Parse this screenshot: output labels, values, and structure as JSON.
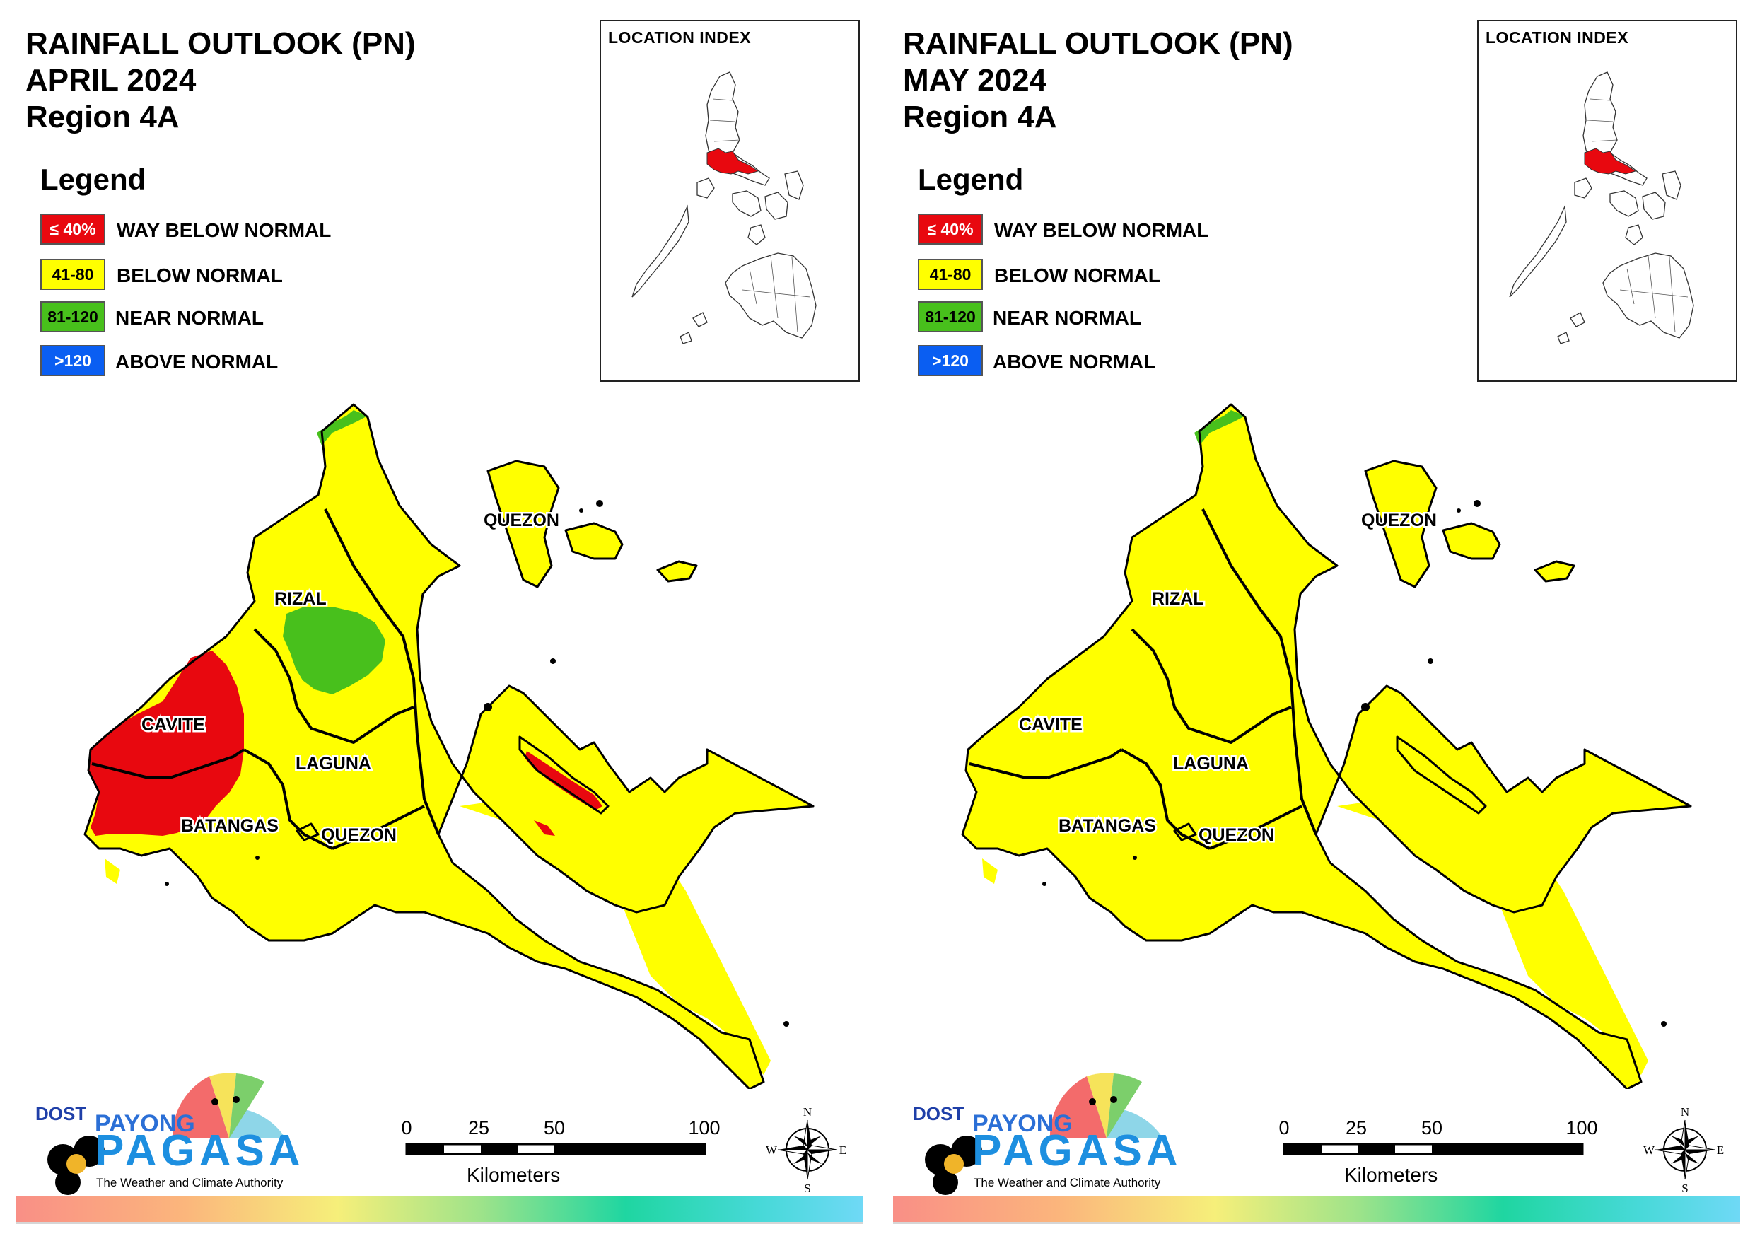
{
  "legend": {
    "title": "Legend",
    "items": [
      {
        "range": "≤ 40%",
        "label": "WAY BELOW NORMAL",
        "color": "#e8080f",
        "text_color": "#ffffff"
      },
      {
        "range": "41-80",
        "label": "BELOW NORMAL",
        "color": "#ffff00",
        "text_color": "#000000"
      },
      {
        "range": "81-120",
        "label": "NEAR NORMAL",
        "color": "#48c01c",
        "text_color": "#000000"
      },
      {
        "range": ">120",
        "label": "ABOVE NORMAL",
        "color": "#0a5ef2",
        "text_color": "#ffffff"
      }
    ]
  },
  "inset": {
    "title": "LOCATION INDEX",
    "highlight_color": "#e8080f"
  },
  "province_labels": [
    "QUEZON",
    "RIZAL",
    "CAVITE",
    "LAGUNA",
    "BATANGAS",
    "QUEZON"
  ],
  "scale": {
    "ticks": [
      "0",
      "25",
      "50",
      "100"
    ],
    "unit": "Kilometers"
  },
  "compass": {
    "n": "N",
    "s": "S",
    "e": "E",
    "w": "W"
  },
  "logo": {
    "dost": "DOST",
    "payong": "PAYONG",
    "pagasa": "PAGASA",
    "tagline": "The Weather and Climate Authority"
  },
  "panels": [
    {
      "title_lines": [
        "RAINFALL OUTLOOK (PN)",
        "APRIL 2024",
        "Region 4A"
      ],
      "regions": {
        "cavite_west": "way-below-normal",
        "rizal_center": "near-normal",
        "north_tip": "near-normal",
        "bondoc_strip": "way-below-normal",
        "rest": "below-normal"
      }
    },
    {
      "title_lines": [
        "RAINFALL OUTLOOK (PN)",
        "MAY 2024",
        "Region 4A"
      ],
      "regions": {
        "north_tip": "near-normal",
        "rest": "below-normal"
      }
    }
  ]
}
